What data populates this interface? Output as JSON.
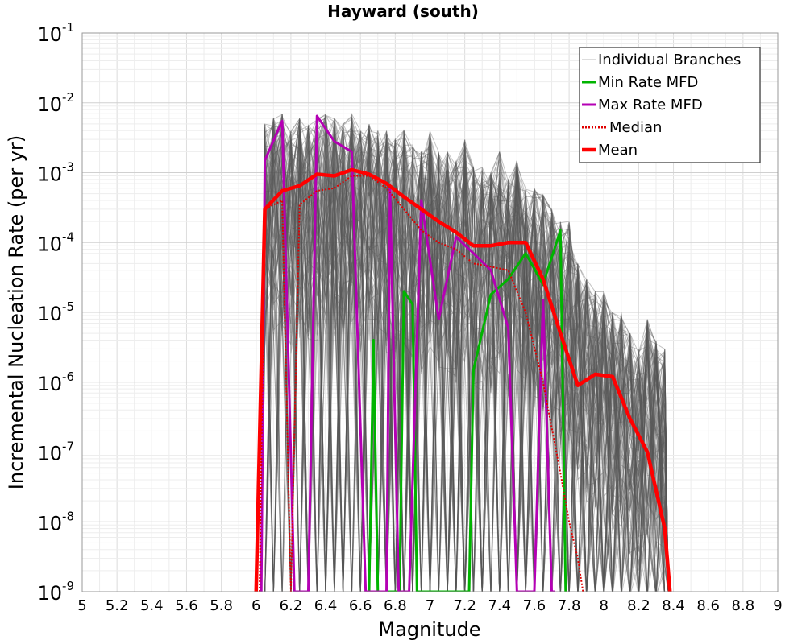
{
  "chart_data": {
    "type": "line",
    "title": "Hayward (south)",
    "xlabel": "Magnitude",
    "ylabel": "Incremental Nucleation Rate (per yr)",
    "xlim": [
      5,
      9
    ],
    "ylim": [
      1e-09,
      0.1
    ],
    "yscale": "log",
    "grid": true,
    "legend_position": "top-right",
    "x_ticks": [
      "5",
      "5.2",
      "5.4",
      "5.6",
      "5.8",
      "6",
      "6.2",
      "6.4",
      "6.6",
      "6.8",
      "7",
      "7.2",
      "7.4",
      "7.6",
      "7.8",
      "8",
      "8.2",
      "8.4",
      "8.6",
      "8.8",
      "9"
    ],
    "y_ticks": [
      {
        "base": "10",
        "exp": "-1"
      },
      {
        "base": "10",
        "exp": "-2"
      },
      {
        "base": "10",
        "exp": "-3"
      },
      {
        "base": "10",
        "exp": "-4"
      },
      {
        "base": "10",
        "exp": "-5"
      },
      {
        "base": "10",
        "exp": "-6"
      },
      {
        "base": "10",
        "exp": "-7"
      },
      {
        "base": "10",
        "exp": "-8"
      },
      {
        "base": "10",
        "exp": "-9"
      }
    ],
    "series": [
      {
        "name": "Individual Branches",
        "color": "#555555",
        "style": "thin-band",
        "upper_envelope": {
          "x": [
            6.05,
            6.1,
            6.15,
            6.2,
            6.25,
            6.3,
            6.35,
            6.4,
            6.45,
            6.5,
            6.55,
            6.6,
            6.65,
            6.7,
            6.75,
            6.8,
            6.85,
            6.9,
            6.95,
            7.0,
            7.05,
            7.1,
            7.15,
            7.2,
            7.25,
            7.3,
            7.35,
            7.4,
            7.45,
            7.5,
            7.55,
            7.6,
            7.65,
            7.7,
            7.75,
            7.8,
            7.85,
            7.9,
            7.95,
            8.0,
            8.05,
            8.1,
            8.15,
            8.2,
            8.25,
            8.3,
            8.35
          ],
          "y": [
            0.005,
            0.006,
            0.007,
            0.004,
            0.006,
            0.005,
            0.006,
            0.007,
            0.006,
            0.005,
            0.007,
            0.004,
            0.005,
            0.004,
            0.004,
            0.003,
            0.004,
            0.0025,
            0.002,
            0.004,
            0.002,
            0.002,
            0.0015,
            0.003,
            0.0012,
            0.0012,
            0.001,
            0.002,
            0.0008,
            0.0015,
            0.0006,
            0.0006,
            0.0005,
            0.0003,
            0.0002,
            0.0002,
            5e-05,
            3e-05,
            2e-05,
            2e-05,
            1e-05,
            1e-05,
            5e-06,
            3e-06,
            8e-06,
            4e-06,
            3e-06
          ]
        }
      },
      {
        "name": "Min Rate MFD",
        "color": "#00b400",
        "x": [
          6.65,
          6.675,
          6.7,
          6.825,
          6.85,
          6.9,
          6.925,
          7.225,
          7.25,
          7.35,
          7.45,
          7.55,
          7.65,
          7.75,
          7.78
        ],
        "y": [
          1e-09,
          4e-06,
          1e-09,
          1e-09,
          2e-05,
          1.3e-05,
          1e-09,
          1e-09,
          1.5e-06,
          1.8e-05,
          3e-05,
          7e-05,
          2.5e-05,
          0.00015,
          1e-09
        ]
      },
      {
        "name": "Max Rate MFD",
        "color": "#b400b4",
        "x": [
          6.03,
          6.05,
          6.15,
          6.22,
          6.3,
          6.35,
          6.45,
          6.55,
          6.63,
          6.7,
          6.75,
          6.77,
          6.82,
          6.88,
          6.95,
          7.05,
          7.15,
          7.25,
          7.35,
          7.45,
          7.5,
          7.6,
          7.65,
          7.7,
          7.72
        ],
        "y": [
          1e-09,
          0.0015,
          0.0055,
          1e-09,
          1e-09,
          0.0065,
          0.0028,
          0.002,
          1e-09,
          1e-09,
          1e-09,
          0.0006,
          1e-09,
          1e-09,
          0.0004,
          8e-06,
          0.00012,
          7e-05,
          4e-05,
          6e-06,
          1e-09,
          1e-09,
          1.5e-05,
          1e-09,
          1e-09
        ]
      },
      {
        "name": "Median",
        "color": "#e00000",
        "dashed": true,
        "x": [
          6.02,
          6.05,
          6.15,
          6.2,
          6.25,
          6.35,
          6.45,
          6.55,
          6.65,
          6.75,
          6.85,
          6.95,
          7.05,
          7.15,
          7.25,
          7.35,
          7.45,
          7.55,
          7.65,
          7.75,
          7.8,
          7.85,
          7.88
        ],
        "y": [
          1e-09,
          0.0003,
          0.0004,
          1e-09,
          0.00035,
          0.00055,
          0.0006,
          0.0009,
          0.0009,
          0.0006,
          0.0003,
          0.00015,
          0.0001,
          8e-05,
          5e-05,
          4.5e-05,
          4e-05,
          1e-05,
          1e-06,
          5e-08,
          1e-08,
          3e-09,
          1e-09
        ]
      },
      {
        "name": "Mean",
        "color": "#ff0000",
        "x": [
          6.0,
          6.05,
          6.15,
          6.25,
          6.35,
          6.45,
          6.55,
          6.65,
          6.75,
          6.85,
          6.95,
          7.05,
          7.15,
          7.25,
          7.35,
          7.45,
          7.55,
          7.65,
          7.75,
          7.85,
          7.95,
          8.05,
          8.15,
          8.25,
          8.35,
          8.38
        ],
        "y": [
          1e-09,
          0.0003,
          0.00055,
          0.00065,
          0.00095,
          0.0009,
          0.0011,
          0.00095,
          0.0007,
          0.00045,
          0.0003,
          0.0002,
          0.00014,
          9e-05,
          9e-05,
          0.0001,
          0.0001,
          3e-05,
          5e-06,
          9e-07,
          1.3e-06,
          1.2e-06,
          3e-07,
          1e-07,
          8e-09,
          1e-09
        ]
      }
    ]
  }
}
